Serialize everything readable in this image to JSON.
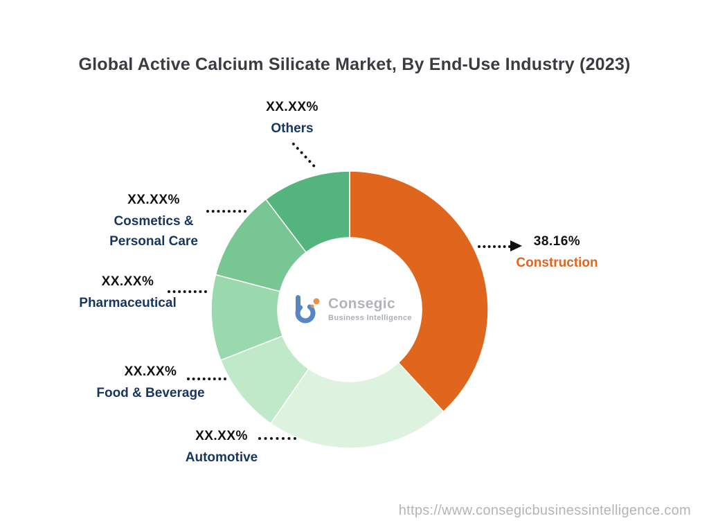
{
  "title": "Global Active Calcium Silicate Market, By End-Use Industry (2023)",
  "watermark_url": "https://www.consegicbusinessintelligence.com",
  "logo": {
    "name": "Consegic",
    "subtitle": "Business Intelligence"
  },
  "chart_data": {
    "type": "pie",
    "variant": "donut",
    "title": "Global Active Calcium Silicate Market, By End-Use Industry (2023)",
    "legend": false,
    "start_angle_deg": -90,
    "direction": "clockwise",
    "inner_radius_ratio": 0.52,
    "accent_color": "#e0661e",
    "label_color": "#17365d",
    "segments": [
      {
        "label": "Construction",
        "display_value": "38.16%",
        "value": 38.16,
        "color": "#e0661e"
      },
      {
        "label": "Automotive",
        "display_value": "XX.XX%",
        "value": 21.5,
        "color": "#ddf3df"
      },
      {
        "label": "Food & Beverage",
        "display_value": "XX.XX%",
        "value": 9.4,
        "color": "#c0e9ca"
      },
      {
        "label": "Pharmaceutical",
        "display_value": "XX.XX%",
        "value": 10.0,
        "color": "#9ad8ae"
      },
      {
        "label": "Cosmetics & Personal Care",
        "display_value": "XX.XX%",
        "value": 10.6,
        "color": "#77c693"
      },
      {
        "label": "Others",
        "display_value": "XX.XX%",
        "value": 10.34,
        "color": "#54b47e"
      }
    ]
  }
}
